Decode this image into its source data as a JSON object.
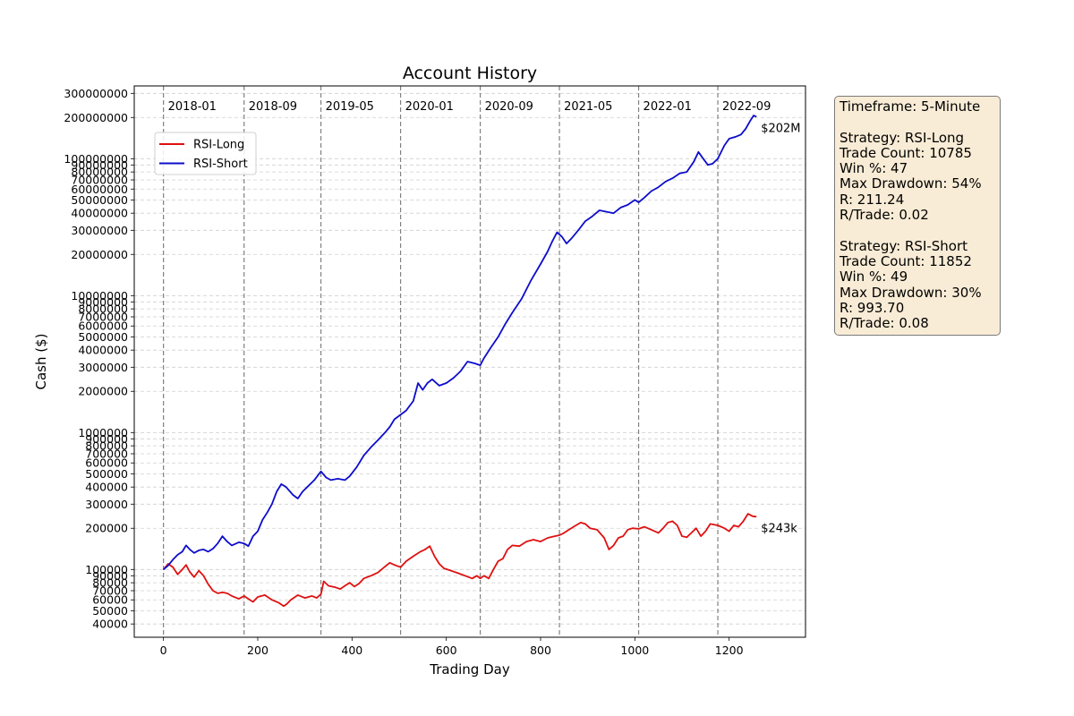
{
  "chart_data": {
    "type": "line",
    "title": "Account History",
    "xlabel": "Trading Day",
    "ylabel": "Cash ($)",
    "y_scale": "log",
    "xlim": [
      -62,
      1362
    ],
    "ylim": [
      32000,
      340000000
    ],
    "x_ticks": [
      0,
      200,
      400,
      600,
      800,
      1000,
      1200
    ],
    "y_ticks": [
      40000,
      50000,
      60000,
      70000,
      80000,
      90000,
      100000,
      200000,
      300000,
      400000,
      500000,
      600000,
      700000,
      800000,
      900000,
      1000000,
      2000000,
      3000000,
      4000000,
      5000000,
      6000000,
      7000000,
      8000000,
      9000000,
      10000000,
      20000000,
      30000000,
      40000000,
      50000000,
      60000000,
      70000000,
      80000000,
      90000000,
      100000000,
      200000000,
      300000000
    ],
    "y_tick_labels": [
      "40000",
      "50000",
      "60000",
      "70000",
      "80000",
      "90000",
      "100000",
      "200000",
      "300000",
      "400000",
      "500000",
      "600000",
      "700000",
      "800000",
      "900000",
      "1000000",
      "2000000",
      "3000000",
      "4000000",
      "5000000",
      "6000000",
      "7000000",
      "8000000",
      "9000000",
      "10000000",
      "20000000",
      "30000000",
      "40000000",
      "50000000",
      "60000000",
      "70000000",
      "80000000",
      "90000000",
      "100000000",
      "200000000",
      "300000000"
    ],
    "grid": "horizontal dashed",
    "legend_position": "upper-left",
    "period_markers": [
      {
        "x": 0,
        "label": "2018-01"
      },
      {
        "x": 171,
        "label": "2018-09"
      },
      {
        "x": 334,
        "label": "2019-05"
      },
      {
        "x": 503,
        "label": "2020-01"
      },
      {
        "x": 672,
        "label": "2020-09"
      },
      {
        "x": 840,
        "label": "2021-05"
      },
      {
        "x": 1008,
        "label": "2022-01"
      },
      {
        "x": 1176,
        "label": "2022-09"
      }
    ],
    "series": [
      {
        "name": "RSI-Long",
        "color": "#e01010",
        "end_label": "$243k",
        "points": [
          [
            0,
            100000
          ],
          [
            10,
            110000
          ],
          [
            20,
            104000
          ],
          [
            30,
            92000
          ],
          [
            40,
            100000
          ],
          [
            48,
            108000
          ],
          [
            56,
            96000
          ],
          [
            65,
            88000
          ],
          [
            75,
            98000
          ],
          [
            85,
            90000
          ],
          [
            95,
            78000
          ],
          [
            105,
            70000
          ],
          [
            115,
            67000
          ],
          [
            125,
            68000
          ],
          [
            135,
            67000
          ],
          [
            145,
            64000
          ],
          [
            160,
            61000
          ],
          [
            171,
            64000
          ],
          [
            180,
            61000
          ],
          [
            190,
            58000
          ],
          [
            200,
            63000
          ],
          [
            215,
            65000
          ],
          [
            230,
            60000
          ],
          [
            245,
            57000
          ],
          [
            255,
            54000
          ],
          [
            262,
            56000
          ],
          [
            270,
            60000
          ],
          [
            285,
            65000
          ],
          [
            300,
            62000
          ],
          [
            315,
            64000
          ],
          [
            325,
            62000
          ],
          [
            334,
            66000
          ],
          [
            340,
            82000
          ],
          [
            350,
            76000
          ],
          [
            365,
            74000
          ],
          [
            375,
            72000
          ],
          [
            385,
            76000
          ],
          [
            395,
            80000
          ],
          [
            405,
            75000
          ],
          [
            415,
            79000
          ],
          [
            425,
            86000
          ],
          [
            440,
            90000
          ],
          [
            455,
            95000
          ],
          [
            470,
            105000
          ],
          [
            480,
            112000
          ],
          [
            490,
            108000
          ],
          [
            503,
            104000
          ],
          [
            515,
            115000
          ],
          [
            530,
            125000
          ],
          [
            545,
            135000
          ],
          [
            555,
            140000
          ],
          [
            565,
            148000
          ],
          [
            575,
            125000
          ],
          [
            585,
            110000
          ],
          [
            595,
            102000
          ],
          [
            610,
            98000
          ],
          [
            625,
            94000
          ],
          [
            640,
            90000
          ],
          [
            655,
            86000
          ],
          [
            665,
            90000
          ],
          [
            672,
            86000
          ],
          [
            680,
            90000
          ],
          [
            690,
            86000
          ],
          [
            700,
            100000
          ],
          [
            710,
            115000
          ],
          [
            720,
            120000
          ],
          [
            730,
            140000
          ],
          [
            740,
            150000
          ],
          [
            755,
            148000
          ],
          [
            770,
            160000
          ],
          [
            785,
            165000
          ],
          [
            800,
            160000
          ],
          [
            815,
            170000
          ],
          [
            830,
            175000
          ],
          [
            840,
            178000
          ],
          [
            850,
            185000
          ],
          [
            860,
            195000
          ],
          [
            875,
            210000
          ],
          [
            885,
            220000
          ],
          [
            895,
            215000
          ],
          [
            905,
            200000
          ],
          [
            920,
            195000
          ],
          [
            935,
            170000
          ],
          [
            945,
            140000
          ],
          [
            955,
            150000
          ],
          [
            965,
            170000
          ],
          [
            975,
            175000
          ],
          [
            985,
            195000
          ],
          [
            995,
            200000
          ],
          [
            1008,
            198000
          ],
          [
            1020,
            205000
          ],
          [
            1035,
            195000
          ],
          [
            1050,
            185000
          ],
          [
            1060,
            200000
          ],
          [
            1070,
            220000
          ],
          [
            1080,
            225000
          ],
          [
            1090,
            210000
          ],
          [
            1100,
            175000
          ],
          [
            1110,
            172000
          ],
          [
            1120,
            185000
          ],
          [
            1130,
            200000
          ],
          [
            1140,
            175000
          ],
          [
            1150,
            190000
          ],
          [
            1160,
            215000
          ],
          [
            1176,
            210000
          ],
          [
            1190,
            200000
          ],
          [
            1200,
            190000
          ],
          [
            1210,
            210000
          ],
          [
            1220,
            205000
          ],
          [
            1230,
            225000
          ],
          [
            1240,
            255000
          ],
          [
            1250,
            245000
          ],
          [
            1258,
            243000
          ]
        ]
      },
      {
        "name": "RSI-Short",
        "color": "#0d0dcc",
        "end_label": "$202M",
        "points": [
          [
            0,
            100000
          ],
          [
            10,
            107000
          ],
          [
            20,
            118000
          ],
          [
            30,
            128000
          ],
          [
            40,
            135000
          ],
          [
            48,
            150000
          ],
          [
            56,
            140000
          ],
          [
            65,
            132000
          ],
          [
            75,
            138000
          ],
          [
            85,
            140000
          ],
          [
            95,
            135000
          ],
          [
            105,
            142000
          ],
          [
            115,
            155000
          ],
          [
            125,
            175000
          ],
          [
            135,
            160000
          ],
          [
            145,
            150000
          ],
          [
            160,
            158000
          ],
          [
            171,
            155000
          ],
          [
            180,
            148000
          ],
          [
            190,
            175000
          ],
          [
            200,
            190000
          ],
          [
            210,
            230000
          ],
          [
            220,
            260000
          ],
          [
            230,
            300000
          ],
          [
            240,
            370000
          ],
          [
            250,
            420000
          ],
          [
            260,
            400000
          ],
          [
            275,
            350000
          ],
          [
            285,
            330000
          ],
          [
            295,
            370000
          ],
          [
            305,
            400000
          ],
          [
            320,
            450000
          ],
          [
            334,
            520000
          ],
          [
            345,
            470000
          ],
          [
            355,
            450000
          ],
          [
            370,
            460000
          ],
          [
            385,
            450000
          ],
          [
            395,
            480000
          ],
          [
            410,
            560000
          ],
          [
            425,
            680000
          ],
          [
            440,
            780000
          ],
          [
            455,
            880000
          ],
          [
            470,
            1000000
          ],
          [
            480,
            1100000
          ],
          [
            490,
            1250000
          ],
          [
            503,
            1350000
          ],
          [
            515,
            1450000
          ],
          [
            530,
            1700000
          ],
          [
            540,
            2300000
          ],
          [
            550,
            2050000
          ],
          [
            560,
            2300000
          ],
          [
            570,
            2450000
          ],
          [
            585,
            2200000
          ],
          [
            600,
            2300000
          ],
          [
            615,
            2500000
          ],
          [
            630,
            2800000
          ],
          [
            645,
            3300000
          ],
          [
            660,
            3200000
          ],
          [
            672,
            3100000
          ],
          [
            680,
            3500000
          ],
          [
            695,
            4200000
          ],
          [
            710,
            5000000
          ],
          [
            725,
            6200000
          ],
          [
            740,
            7500000
          ],
          [
            760,
            9500000
          ],
          [
            780,
            13000000
          ],
          [
            800,
            17000000
          ],
          [
            815,
            21000000
          ],
          [
            825,
            25000000
          ],
          [
            835,
            29000000
          ],
          [
            845,
            27000000
          ],
          [
            855,
            24000000
          ],
          [
            865,
            26000000
          ],
          [
            880,
            30000000
          ],
          [
            895,
            35000000
          ],
          [
            910,
            38000000
          ],
          [
            925,
            42000000
          ],
          [
            940,
            41000000
          ],
          [
            955,
            40000000
          ],
          [
            970,
            44000000
          ],
          [
            985,
            46000000
          ],
          [
            1000,
            50000000
          ],
          [
            1008,
            48000000
          ],
          [
            1020,
            52000000
          ],
          [
            1035,
            58000000
          ],
          [
            1050,
            62000000
          ],
          [
            1065,
            68000000
          ],
          [
            1080,
            72000000
          ],
          [
            1095,
            78000000
          ],
          [
            1110,
            80000000
          ],
          [
            1125,
            95000000
          ],
          [
            1135,
            112000000
          ],
          [
            1145,
            100000000
          ],
          [
            1155,
            90000000
          ],
          [
            1165,
            92000000
          ],
          [
            1176,
            100000000
          ],
          [
            1190,
            125000000
          ],
          [
            1200,
            140000000
          ],
          [
            1215,
            145000000
          ],
          [
            1225,
            150000000
          ],
          [
            1235,
            165000000
          ],
          [
            1245,
            190000000
          ],
          [
            1252,
            207000000
          ],
          [
            1258,
            202000000
          ]
        ]
      }
    ]
  },
  "info_box": {
    "lines": [
      "Timeframe: 5-Minute",
      "",
      "Strategy: RSI-Long",
      "Trade Count: 10785",
      "Win %: 47",
      "Max Drawdown: 54%",
      "R: 211.24",
      "R/Trade: 0.02",
      "",
      "Strategy: RSI-Short",
      "Trade Count: 11852",
      "Win %: 49",
      "Max Drawdown: 30%",
      "R: 993.70",
      "R/Trade: 0.08"
    ]
  }
}
